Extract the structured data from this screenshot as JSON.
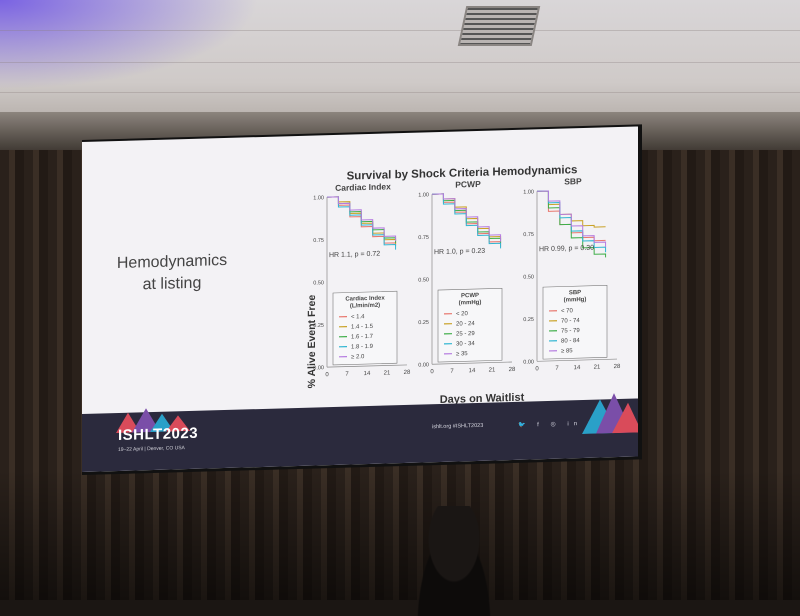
{
  "slide": {
    "title": "Survival by Shock Criteria Hemodynamics",
    "side_label_line1": "Hemodynamics",
    "side_label_line2": "at listing",
    "y_axis_label": "% Alive Event Free",
    "x_axis_label": "Days on Waitlist",
    "footer": {
      "brand": "ISHLT2023",
      "dates": "19–22 April | Denver, CO USA",
      "links": "ishlt.org  #ISHLT2023",
      "icons": [
        "twitter-icon",
        "facebook-icon",
        "instagram-icon",
        "linkedin-icon",
        "youtube-icon"
      ],
      "icon_glyphs": "🐦 f ◎ in ▶"
    }
  },
  "chart_data": [
    {
      "type": "line",
      "title": "Cardiac Index",
      "y_ticks": [
        "0.00",
        "0.25",
        "0.50",
        "0.75",
        "1.00"
      ],
      "x_ticks": [
        "0",
        "7",
        "14",
        "21",
        "28"
      ],
      "ylim": [
        0,
        1
      ],
      "xlim": [
        0,
        28
      ],
      "annotation": "HR 1.1, p = 0.72",
      "legend_title": "Cardiac Index\n(L/min/m2)",
      "legend_title_lines": [
        "Cardiac Index",
        "(L/min/m2)"
      ],
      "series": [
        {
          "name": "< 1.4",
          "color": "#e8766d",
          "x": [
            0,
            4,
            8,
            12,
            16,
            20,
            24
          ],
          "y": [
            1.0,
            0.95,
            0.88,
            0.82,
            0.76,
            0.72,
            0.7
          ]
        },
        {
          "name": "1.4 - 1.5",
          "color": "#c9a227",
          "x": [
            0,
            4,
            8,
            12,
            16,
            20,
            24
          ],
          "y": [
            1.0,
            0.97,
            0.9,
            0.84,
            0.78,
            0.74,
            0.71
          ]
        },
        {
          "name": "1.6 - 1.7",
          "color": "#3fae49",
          "x": [
            0,
            4,
            8,
            12,
            16,
            20,
            24
          ],
          "y": [
            1.0,
            0.96,
            0.91,
            0.85,
            0.8,
            0.75,
            0.72
          ]
        },
        {
          "name": "1.8 - 1.9",
          "color": "#2fb5d1",
          "x": [
            0,
            4,
            8,
            12,
            16,
            20,
            24
          ],
          "y": [
            1.0,
            0.94,
            0.89,
            0.83,
            0.77,
            0.71,
            0.68
          ]
        },
        {
          "name": "≥ 2.0",
          "color": "#b57be0",
          "x": [
            0,
            4,
            8,
            12,
            16,
            20,
            24
          ],
          "y": [
            1.0,
            0.96,
            0.92,
            0.86,
            0.81,
            0.76,
            0.73
          ]
        }
      ]
    },
    {
      "type": "line",
      "title": "PCWP",
      "y_ticks": [
        "0.00",
        "0.25",
        "0.50",
        "0.75",
        "1.00"
      ],
      "x_ticks": [
        "0",
        "7",
        "14",
        "21",
        "28"
      ],
      "ylim": [
        0,
        1
      ],
      "xlim": [
        0,
        28
      ],
      "annotation": "HR 1.0, p = 0.23",
      "legend_title": "PCWP\n(mmHg)",
      "legend_title_lines": [
        "PCWP",
        "(mmHg)"
      ],
      "series": [
        {
          "name": "< 20",
          "color": "#e8766d",
          "x": [
            0,
            4,
            8,
            12,
            16,
            20,
            24
          ],
          "y": [
            1.0,
            0.95,
            0.89,
            0.82,
            0.76,
            0.71,
            0.68
          ]
        },
        {
          "name": "20 - 24",
          "color": "#c9a227",
          "x": [
            0,
            4,
            8,
            12,
            16,
            20,
            24
          ],
          "y": [
            1.0,
            0.97,
            0.92,
            0.85,
            0.79,
            0.74,
            0.72
          ]
        },
        {
          "name": "25 - 29",
          "color": "#3fae49",
          "x": [
            0,
            4,
            8,
            12,
            16,
            20,
            24
          ],
          "y": [
            1.0,
            0.96,
            0.9,
            0.83,
            0.77,
            0.73,
            0.7
          ]
        },
        {
          "name": "30 - 34",
          "color": "#2fb5d1",
          "x": [
            0,
            4,
            8,
            12,
            16,
            20,
            24
          ],
          "y": [
            1.0,
            0.94,
            0.88,
            0.81,
            0.75,
            0.7,
            0.67
          ]
        },
        {
          "name": "≥ 35",
          "color": "#b57be0",
          "x": [
            0,
            4,
            8,
            12,
            16,
            20,
            24
          ],
          "y": [
            1.0,
            0.97,
            0.91,
            0.86,
            0.8,
            0.75,
            0.71
          ]
        }
      ]
    },
    {
      "type": "line",
      "title": "SBP",
      "y_ticks": [
        "0.00",
        "0.25",
        "0.50",
        "0.75",
        "1.00"
      ],
      "x_ticks": [
        "0",
        "7",
        "14",
        "21",
        "28"
      ],
      "ylim": [
        0,
        1
      ],
      "xlim": [
        0,
        28
      ],
      "annotation": "HR 0.99, p = 0.30",
      "legend_title": "SBP\n(mmHg)",
      "legend_title_lines": [
        "SBP",
        "(mmHg)"
      ],
      "series": [
        {
          "name": "< 70",
          "color": "#e8766d",
          "x": [
            0,
            4,
            8,
            12,
            16,
            20,
            24
          ],
          "y": [
            1.0,
            0.88,
            0.8,
            0.75,
            0.72,
            0.7,
            0.7
          ]
        },
        {
          "name": "70 - 74",
          "color": "#c9a227",
          "x": [
            0,
            4,
            8,
            12,
            16,
            20,
            24
          ],
          "y": [
            1.0,
            0.92,
            0.86,
            0.82,
            0.79,
            0.78,
            0.78
          ]
        },
        {
          "name": "75 - 79",
          "color": "#3fae49",
          "x": [
            0,
            4,
            8,
            12,
            16,
            20,
            24
          ],
          "y": [
            1.0,
            0.9,
            0.8,
            0.72,
            0.66,
            0.62,
            0.6
          ]
        },
        {
          "name": "80 - 84",
          "color": "#2fb5d1",
          "x": [
            0,
            4,
            8,
            12,
            16,
            20,
            24
          ],
          "y": [
            1.0,
            0.93,
            0.84,
            0.76,
            0.7,
            0.66,
            0.63
          ]
        },
        {
          "name": "≥ 85",
          "color": "#b57be0",
          "x": [
            0,
            4,
            8,
            12,
            16,
            20,
            24
          ],
          "y": [
            1.0,
            0.94,
            0.86,
            0.79,
            0.73,
            0.69,
            0.66
          ]
        }
      ]
    }
  ]
}
